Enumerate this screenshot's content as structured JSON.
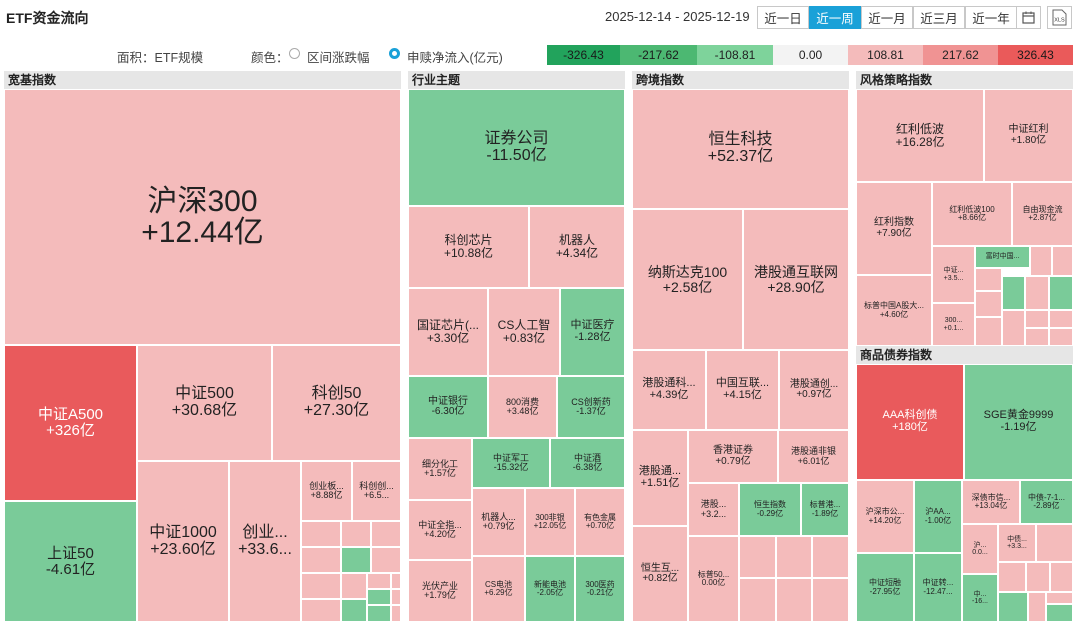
{
  "header": {
    "title": "ETF资金流向",
    "date_range": "2025-12-14 - 2025-12-19",
    "periods": [
      "近一日",
      "近一周",
      "近一月",
      "近三月",
      "近一年"
    ],
    "active_period": "近一周",
    "calendar_icon": "calendar-icon",
    "export_icon": "excel-export-icon",
    "export_label": "XLS"
  },
  "legend": {
    "area_label": "面积：ETF规模",
    "color_label": "颜色：",
    "option1": "区间涨跌幅",
    "option2": "申赎净流入(亿元)",
    "scale": [
      "-326.43",
      "-217.62",
      "-108.81",
      "0.00",
      "108.81",
      "217.62",
      "326.43"
    ],
    "scale_colors": [
      "#22a35c",
      "#4cb872",
      "#7ed39b",
      "#f3f3f3",
      "#f4bbbb",
      "#f09393",
      "#ea5a5a"
    ]
  },
  "colors": {
    "red_strong": "#e95a5c",
    "red_light": "#f4bbbb",
    "green_mid": "#7acb99",
    "green_light": "#8fd6a8"
  },
  "groups": [
    {
      "name": "宽基指数",
      "tiles": [
        {
          "name": "沪深300",
          "value": "+12.44亿"
        },
        {
          "name": "中证A500",
          "value": "+326亿"
        },
        {
          "name": "上证50",
          "value": "-4.61亿"
        },
        {
          "name": "中证500",
          "value": "+30.68亿"
        },
        {
          "name": "科创50",
          "value": "+27.30亿"
        },
        {
          "name": "中证1000",
          "value": "+23.60亿"
        },
        {
          "name": "创业...",
          "value": "+33.6..."
        },
        {
          "name": "创业板...",
          "value": "+8.88亿"
        },
        {
          "name": "科创创...",
          "value": "+6.5..."
        }
      ]
    },
    {
      "name": "行业主题",
      "tiles": [
        {
          "name": "证券公司",
          "value": "-11.50亿"
        },
        {
          "name": "科创芯片",
          "value": "+10.88亿"
        },
        {
          "name": "机器人",
          "value": "+4.34亿"
        },
        {
          "name": "国证芯片(...",
          "value": "+3.30亿"
        },
        {
          "name": "CS人工智",
          "value": "+0.83亿"
        },
        {
          "name": "中证医疗",
          "value": "-1.28亿"
        },
        {
          "name": "中证银行",
          "value": "-6.30亿"
        },
        {
          "name": "800消费",
          "value": "+3.48亿"
        },
        {
          "name": "CS创新药",
          "value": "-1.37亿"
        },
        {
          "name": "细分化工",
          "value": "+1.57亿"
        },
        {
          "name": "中证军工",
          "value": "-15.32亿"
        },
        {
          "name": "中证酒",
          "value": "-6.38亿"
        },
        {
          "name": "中证全指...",
          "value": "+4.20亿"
        },
        {
          "name": "机器人...",
          "value": "+0.79亿"
        },
        {
          "name": "300非银",
          "value": "+12.05亿"
        },
        {
          "name": "有色金属",
          "value": "+0.70亿"
        },
        {
          "name": "光伏产业",
          "value": "+1.79亿"
        },
        {
          "name": "CS电池",
          "value": "+6.29亿"
        },
        {
          "name": "新能电池",
          "value": "-2.05亿"
        },
        {
          "name": "300医药",
          "value": "-0.21亿"
        }
      ]
    },
    {
      "name": "跨境指数",
      "tiles": [
        {
          "name": "恒生科技",
          "value": "+52.37亿"
        },
        {
          "name": "纳斯达克100",
          "value": "+2.58亿"
        },
        {
          "name": "港股通互联网",
          "value": "+28.90亿"
        },
        {
          "name": "港股通科...",
          "value": "+4.39亿"
        },
        {
          "name": "中国互联...",
          "value": "+4.15亿"
        },
        {
          "name": "港股通创...",
          "value": "+0.97亿"
        },
        {
          "name": "港股通...",
          "value": "+1.51亿"
        },
        {
          "name": "香港证券",
          "value": "+0.79亿"
        },
        {
          "name": "港股通非银",
          "value": "+6.01亿"
        },
        {
          "name": "港股...",
          "value": "+3.2..."
        },
        {
          "name": "恒生指数",
          "value": "-0.29亿"
        },
        {
          "name": "标普港...",
          "value": "-1.89亿"
        },
        {
          "name": "恒生互...",
          "value": "+0.82亿"
        },
        {
          "name": "标普50...",
          "value": "0.00亿"
        }
      ]
    },
    {
      "name": "风格策略指数",
      "tiles": [
        {
          "name": "红利低波",
          "value": "+16.28亿"
        },
        {
          "name": "中证红利",
          "value": "+1.80亿"
        },
        {
          "name": "红利指数",
          "value": "+7.90亿"
        },
        {
          "name": "红利低波100",
          "value": "+8.66亿"
        },
        {
          "name": "自由现金流",
          "value": "+2.87亿"
        },
        {
          "name": "富时中国...",
          "value": ""
        },
        {
          "name": "中证...",
          "value": "+3.5..."
        },
        {
          "name": "标普中国A股大...",
          "value": "+4.60亿"
        },
        {
          "name": "300...",
          "value": "+0.1..."
        }
      ]
    },
    {
      "name": "商品债券指数",
      "tiles": [
        {
          "name": "AAA科创债",
          "value": "+180亿"
        },
        {
          "name": "SGE黄金9999",
          "value": "-1.19亿"
        },
        {
          "name": "沪深市公...",
          "value": "+14.20亿"
        },
        {
          "name": "沪AA...",
          "value": "-1.00亿"
        },
        {
          "name": "深债市信...",
          "value": "+13.04亿"
        },
        {
          "name": "中债-7-1...",
          "value": "-2.89亿"
        },
        {
          "name": "沪...",
          "value": "0.0..."
        },
        {
          "name": "中债...",
          "value": "+3.3..."
        },
        {
          "name": "中证短融",
          "value": "-27.95亿"
        },
        {
          "name": "中证转...",
          "value": "-12.47..."
        },
        {
          "name": "中...",
          "value": "-16..."
        }
      ]
    }
  ]
}
